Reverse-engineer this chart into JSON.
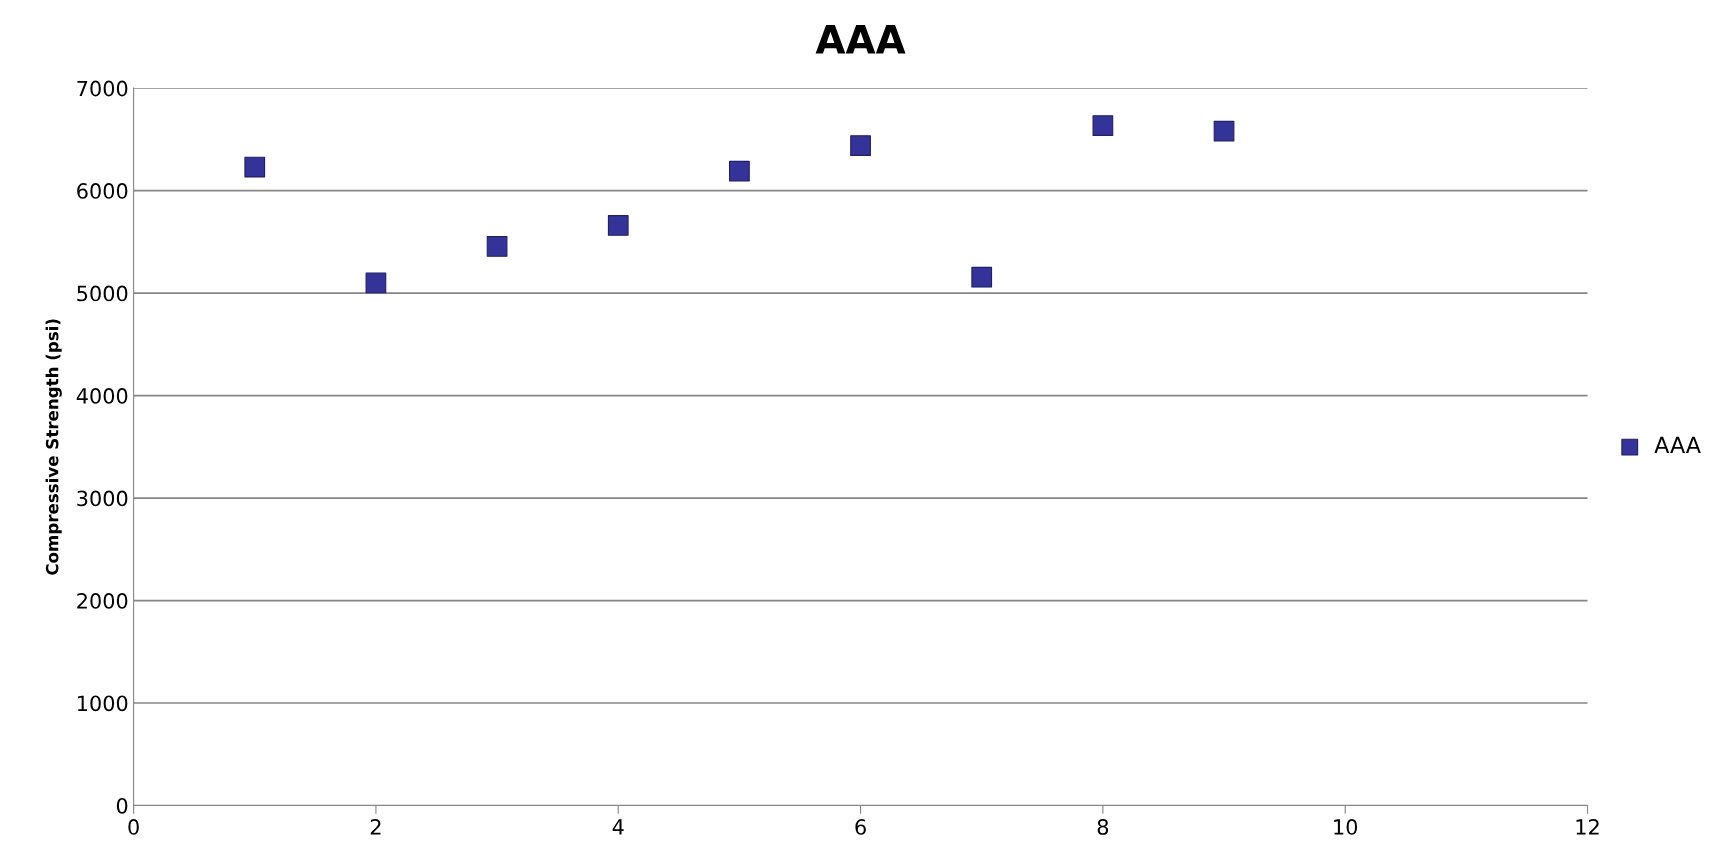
{
  "chart_data": {
    "type": "scatter",
    "title": "AAA",
    "ylabel": "Compressive Strength (psi)",
    "x": [
      1,
      2,
      3,
      4,
      5,
      6,
      7,
      8,
      9
    ],
    "series": [
      {
        "name": "AAA",
        "color": "#333399",
        "values": [
          6230,
          5100,
          5455,
          5660,
          6190,
          6440,
          5155,
          6635,
          6580
        ]
      }
    ],
    "xlim": [
      0,
      12
    ],
    "xticks": [
      0,
      2,
      4,
      6,
      8,
      10,
      12
    ],
    "ylim": [
      0,
      7000
    ],
    "yticks": [
      0,
      1000,
      2000,
      3000,
      4000,
      5000,
      6000,
      7000
    ],
    "grid": "y",
    "legend": "right",
    "marker": "square"
  }
}
